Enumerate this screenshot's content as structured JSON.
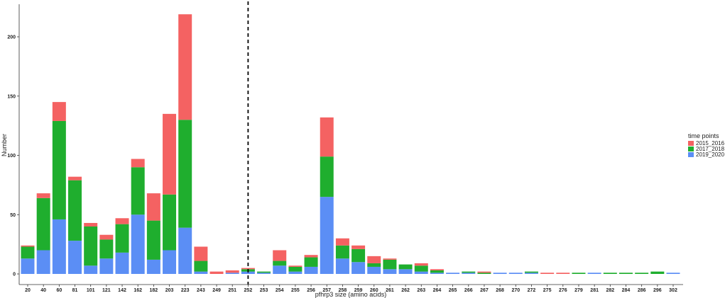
{
  "chart_data": {
    "type": "bar",
    "stacked": true,
    "xlabel": "pfhrp3 size (amino acids)",
    "ylabel": "Number",
    "ylim": [
      0,
      220
    ],
    "yticks": [
      0,
      50,
      100,
      150,
      200
    ],
    "grid": false,
    "legend_position": "right",
    "legend_title": "time points",
    "reference_line": {
      "after_category": "252",
      "style": "dashed"
    },
    "categories": [
      "20",
      "40",
      "60",
      "81",
      "101",
      "121",
      "142",
      "162",
      "182",
      "203",
      "223",
      "243",
      "249",
      "251",
      "252",
      "253",
      "254",
      "255",
      "256",
      "257",
      "258",
      "259",
      "260",
      "261",
      "262",
      "263",
      "264",
      "265",
      "266",
      "267",
      "268",
      "270",
      "272",
      "275",
      "276",
      "279",
      "281",
      "282",
      "284",
      "286",
      "296",
      "302"
    ],
    "series": [
      {
        "name": "2019_2020",
        "color": "#5b8ef5",
        "values": [
          13,
          20,
          46,
          28,
          7,
          13,
          18,
          50,
          12,
          20,
          39,
          2,
          0,
          1,
          2,
          1,
          7,
          2,
          6,
          65,
          13,
          10,
          6,
          4,
          4,
          2,
          1,
          1,
          1,
          0,
          1,
          1,
          1,
          0,
          0,
          0,
          1,
          0,
          0,
          0,
          0,
          1
        ]
      },
      {
        "name": "2017_2018",
        "color": "#1fae2e",
        "values": [
          10,
          44,
          83,
          51,
          33,
          16,
          24,
          40,
          33,
          47,
          91,
          9,
          0,
          0,
          2,
          1,
          4,
          4,
          8,
          34,
          11,
          11,
          3,
          8,
          4,
          5,
          2,
          0,
          1,
          1,
          0,
          0,
          1,
          0,
          0,
          1,
          0,
          1,
          1,
          1,
          2,
          0
        ]
      },
      {
        "name": "2015_2016",
        "color": "#f46262",
        "values": [
          1,
          4,
          16,
          3,
          3,
          4,
          5,
          7,
          23,
          68,
          89,
          12,
          2,
          2,
          1,
          0,
          9,
          1,
          2,
          33,
          6,
          3,
          6,
          1,
          0,
          2,
          1,
          0,
          0,
          1,
          0,
          0,
          0,
          1,
          1,
          0,
          0,
          0,
          0,
          0,
          0,
          0
        ]
      }
    ],
    "legend_order": [
      "2015_2016",
      "2017_2018",
      "2019_2020"
    ]
  }
}
